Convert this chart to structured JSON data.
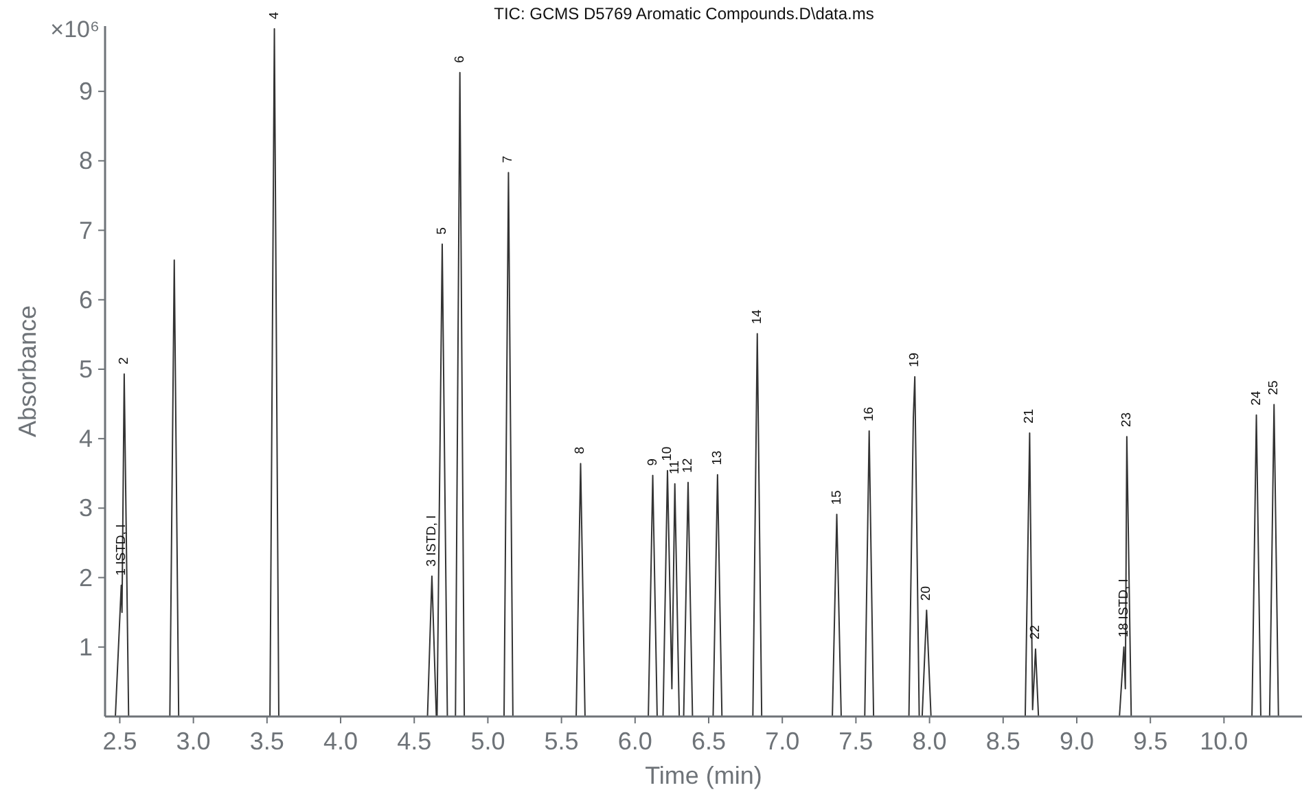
{
  "chart_data": {
    "type": "line",
    "title": "TIC: GCMS D5769 Aromatic Compounds.D\\data.ms",
    "xlabel": "Time (min)",
    "ylabel": "Absorbance",
    "xlim": [
      2.4,
      10.53
    ],
    "xticks": [
      {
        "value": 2.5,
        "label": "2.5"
      },
      {
        "value": 3,
        "label": "3.0"
      },
      {
        "value": 3.5,
        "label": "3.5"
      },
      {
        "value": 4,
        "label": "4.0"
      },
      {
        "value": 4.5,
        "label": "4.5"
      },
      {
        "value": 5,
        "label": "5.0"
      },
      {
        "value": 5.5,
        "label": "5.5"
      },
      {
        "value": 6,
        "label": "6.0"
      },
      {
        "value": 6.5,
        "label": "6.5"
      },
      {
        "value": 7,
        "label": "7.0"
      },
      {
        "value": 7.5,
        "label": "7.5"
      },
      {
        "value": 8,
        "label": "8.0"
      },
      {
        "value": 8.5,
        "label": "8.5"
      },
      {
        "value": 9,
        "label": "9.0"
      },
      {
        "value": 9.5,
        "label": "9.5"
      },
      {
        "value": 10,
        "label": "10.0"
      }
    ],
    "ylim": [
      0,
      9.94
    ],
    "yticks": [
      1,
      2,
      3,
      4,
      5,
      6,
      7,
      8,
      9
    ],
    "grid": false,
    "marker": "none",
    "line_style": "solid",
    "series": [
      {
        "color": "#333333",
        "x": [
          2.47,
          2.51,
          2.515,
          2.53,
          2.56,
          2.84,
          2.87,
          2.9,
          3.52,
          3.55,
          3.58,
          4.59,
          4.62,
          4.65,
          4.655,
          4.69,
          4.725,
          4.78,
          4.81,
          4.84,
          5.11,
          5.14,
          5.17,
          5.6,
          5.63,
          5.66,
          6.09,
          6.12,
          6.15,
          6.19,
          6.22,
          6.25,
          6.27,
          6.3,
          6.33,
          6.36,
          6.39,
          6.53,
          6.56,
          6.59,
          6.8,
          6.83,
          6.86,
          7.34,
          7.37,
          7.4,
          7.56,
          7.59,
          7.62,
          7.86,
          7.89,
          7.9,
          7.93,
          7.95,
          7.98,
          8.01,
          8.65,
          8.68,
          8.7,
          8.72,
          8.74,
          9.29,
          9.32,
          9.33,
          9.34,
          9.37,
          10.19,
          10.22,
          10.25,
          10.31,
          10.34,
          10.37,
          10.45
        ],
        "values": [
          0,
          1.89,
          1.5,
          4.93,
          0,
          0,
          6.57,
          0,
          0,
          9.9,
          0,
          0,
          2.02,
          0,
          0,
          6.8,
          0,
          0,
          9.27,
          0,
          0,
          7.83,
          0,
          0,
          3.64,
          0,
          0,
          3.47,
          0,
          0,
          3.54,
          0.4,
          3.35,
          0,
          0,
          3.37,
          0,
          0,
          3.48,
          0,
          0,
          5.51,
          0,
          0,
          2.91,
          0,
          0,
          4.11,
          0,
          0,
          4.3,
          4.89,
          0,
          0,
          1.53,
          0,
          0,
          4.08,
          0.1,
          0.97,
          0,
          0,
          1.0,
          0.4,
          4.03,
          0,
          0,
          4.34,
          0,
          0,
          4.49,
          0,
          0
        ]
      }
    ],
    "annotations": [
      "×10⁶",
      {
        "text": "1 ISTD, I",
        "x": 2.51,
        "y": 1.89
      },
      {
        "text": "2",
        "x": 2.53,
        "y": 4.93
      },
      {
        "text": "3 ISTD, I",
        "x": 4.62,
        "y": 2.02
      },
      {
        "text": "4",
        "x": 3.55,
        "y": 9.9
      },
      {
        "text": "5",
        "x": 4.69,
        "y": 6.8
      },
      {
        "text": "6",
        "x": 4.81,
        "y": 9.27
      },
      {
        "text": "7",
        "x": 5.14,
        "y": 7.83
      },
      {
        "text": "8",
        "x": 5.63,
        "y": 3.64
      },
      {
        "text": "9",
        "x": 6.12,
        "y": 3.47
      },
      {
        "text": "10",
        "x": 6.22,
        "y": 3.54
      },
      {
        "text": "11",
        "x": 6.27,
        "y": 3.35
      },
      {
        "text": "12",
        "x": 6.36,
        "y": 3.37
      },
      {
        "text": "13",
        "x": 6.56,
        "y": 3.48
      },
      {
        "text": "14",
        "x": 6.83,
        "y": 5.51
      },
      {
        "text": "15",
        "x": 7.37,
        "y": 2.91
      },
      {
        "text": "16",
        "x": 7.59,
        "y": 4.11
      },
      {
        "text": "19",
        "x": 7.9,
        "y": 4.89
      },
      {
        "text": "20",
        "x": 7.98,
        "y": 1.53
      },
      {
        "text": "21",
        "x": 8.68,
        "y": 4.08
      },
      {
        "text": "22",
        "x": 8.72,
        "y": 0.97
      },
      {
        "text": "18 ISTD, I",
        "x": 9.32,
        "y": 1.0
      },
      {
        "text": "23",
        "x": 9.34,
        "y": 4.03
      },
      {
        "text": "24",
        "x": 10.22,
        "y": 4.34
      },
      {
        "text": "25",
        "x": 10.34,
        "y": 4.49
      }
    ]
  }
}
